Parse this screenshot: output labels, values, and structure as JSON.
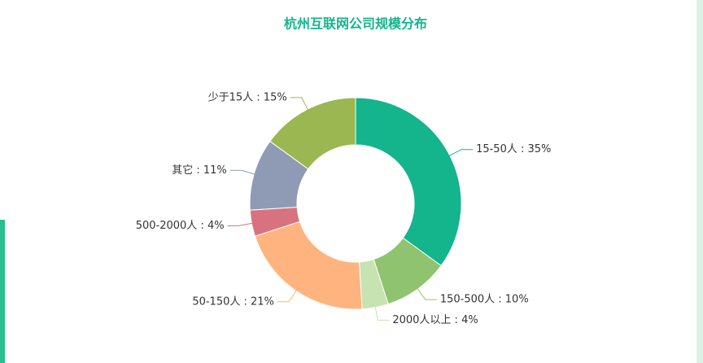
{
  "chart_data": {
    "type": "donut",
    "title": "杭州互联网公司规模分布",
    "values": [
      35,
      10,
      4,
      21,
      4,
      11,
      15
    ],
    "value_labels": [
      "15-50人 : 35%",
      "150-500人 : 10%",
      "2000人以上 : 4%",
      "50-150人 : 21%",
      "500-2000人 : 4%",
      "其它 : 11%",
      "少于15人 : 15%"
    ],
    "colors": [
      "#14b48c",
      "#8fc36f",
      "#c6e3b1",
      "#ffb47f",
      "#d9727f",
      "#8f9bb5",
      "#9ab752"
    ]
  }
}
